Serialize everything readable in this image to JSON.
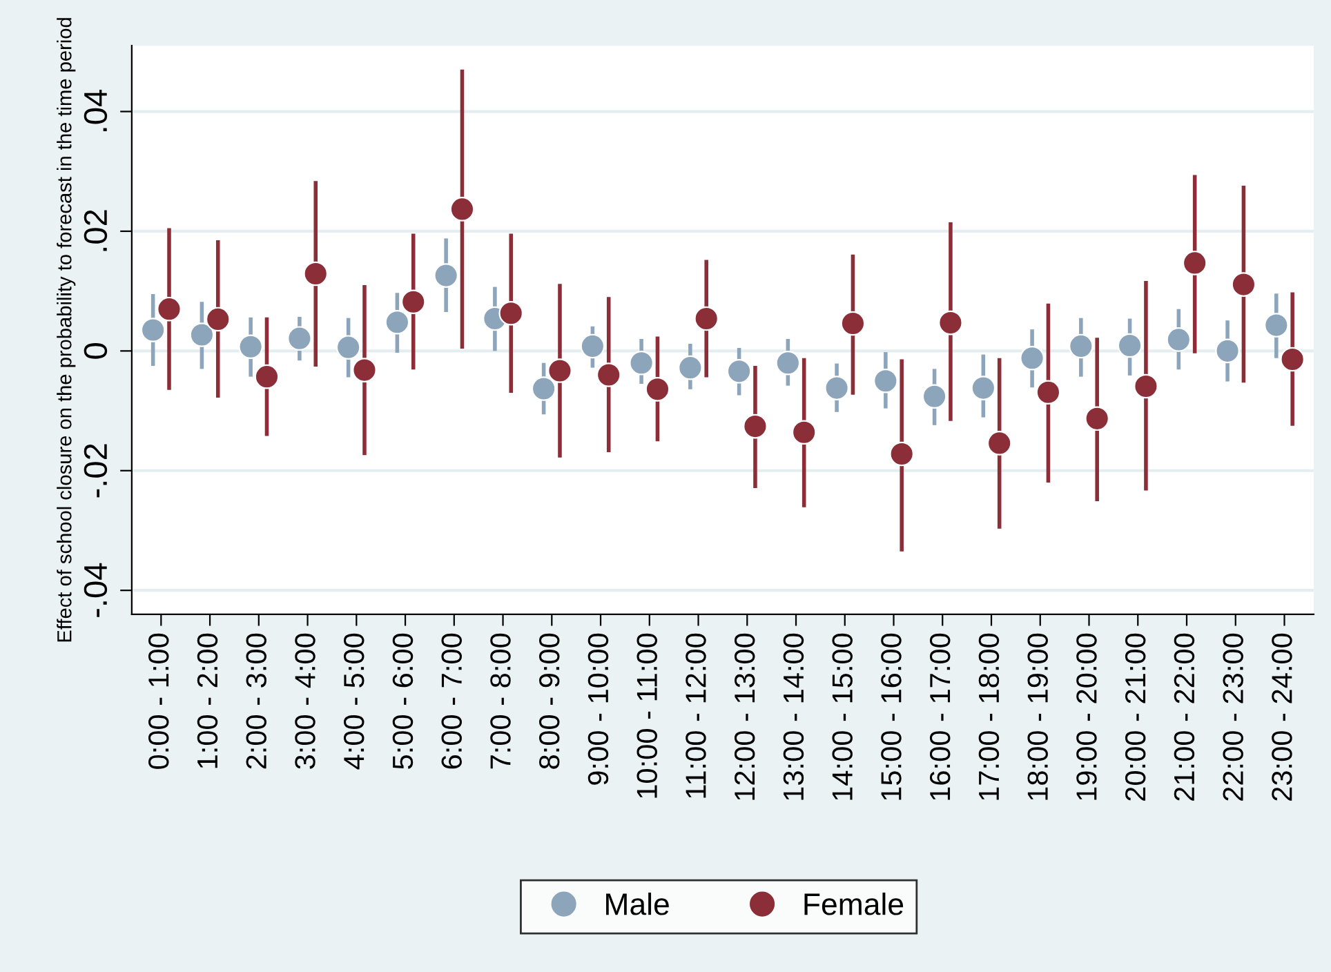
{
  "chart_data": {
    "type": "scatter",
    "ylabel": "Effect of school closure on the probability to forecast in the time period",
    "categories": [
      "0:00 - 1:00",
      "1:00 - 2:00",
      "2:00 - 3:00",
      "3:00 - 4:00",
      "4:00 - 5:00",
      "5:00 - 6:00",
      "6:00 - 7:00",
      "7:00 - 8:00",
      "8:00 - 9:00",
      "9:00 - 10:00",
      "10:00 - 11:00",
      "11:00 - 12:00",
      "12:00 - 13:00",
      "13:00 - 14:00",
      "14:00 - 15:00",
      "15:00 - 16:00",
      "16:00 - 17:00",
      "17:00 - 18:00",
      "18:00 - 19:00",
      "19:00 - 20:00",
      "20:00 - 21:00",
      "21:00 - 22:00",
      "22:00 - 23:00",
      "23:00 - 24:00"
    ],
    "series": [
      {
        "name": "Male",
        "color": "#8da5bb",
        "values": [
          0.0035,
          0.0027,
          0.0007,
          0.0021,
          0.0006,
          0.0048,
          0.0126,
          0.0054,
          -0.0063,
          0.0008,
          -0.002,
          -0.0028,
          -0.0034,
          -0.002,
          -0.0062,
          -0.005,
          -0.0076,
          -0.0062,
          -0.0012,
          0.0008,
          0.0009,
          0.0019,
          0.0,
          0.0043
        ],
        "errors": [
          [
            -0.0025,
            0.0095
          ],
          [
            -0.003,
            0.0082
          ],
          [
            -0.0043,
            0.0056
          ],
          [
            -0.0016,
            0.0057
          ],
          [
            -0.0044,
            0.0055
          ],
          [
            -0.0003,
            0.0097
          ],
          [
            0.0065,
            0.0188
          ],
          [
            0.0,
            0.0107
          ],
          [
            -0.0106,
            -0.002
          ],
          [
            -0.0028,
            0.0041
          ],
          [
            -0.0055,
            0.002
          ],
          [
            -0.0064,
            0.0012
          ],
          [
            -0.0074,
            0.0005
          ],
          [
            -0.0058,
            0.002
          ],
          [
            -0.0102,
            -0.0021
          ],
          [
            -0.0096,
            -0.0002
          ],
          [
            -0.0124,
            -0.003
          ],
          [
            -0.0111,
            -0.0006
          ],
          [
            -0.0061,
            0.0036
          ],
          [
            -0.0043,
            0.0055
          ],
          [
            -0.0041,
            0.0054
          ],
          [
            -0.0031,
            0.007
          ],
          [
            -0.0051,
            0.0051
          ],
          [
            -0.0012,
            0.0096
          ]
        ]
      },
      {
        "name": "Female",
        "color": "#8b2e38",
        "values": [
          0.007,
          0.0053,
          -0.0043,
          0.0129,
          -0.0032,
          0.0082,
          0.0237,
          0.0063,
          -0.0033,
          -0.004,
          -0.0064,
          0.0054,
          -0.0126,
          -0.0136,
          0.0046,
          -0.0172,
          0.0047,
          -0.0154,
          -0.0069,
          -0.0113,
          -0.0059,
          0.0147,
          0.0111,
          -0.0014
        ],
        "errors": [
          [
            -0.0065,
            0.0205
          ],
          [
            -0.0078,
            0.0185
          ],
          [
            -0.0142,
            0.0056
          ],
          [
            -0.0026,
            0.0284
          ],
          [
            -0.0174,
            0.011
          ],
          [
            -0.0031,
            0.0196
          ],
          [
            0.0004,
            0.047
          ],
          [
            -0.007,
            0.0196
          ],
          [
            -0.0178,
            0.0112
          ],
          [
            -0.0169,
            0.009
          ],
          [
            -0.0151,
            0.0024
          ],
          [
            -0.0044,
            0.0152
          ],
          [
            -0.0229,
            -0.0025
          ],
          [
            -0.0261,
            -0.0012
          ],
          [
            -0.0073,
            0.0161
          ],
          [
            -0.0335,
            -0.0014
          ],
          [
            -0.0117,
            0.0215
          ],
          [
            -0.0297,
            -0.0012
          ],
          [
            -0.022,
            0.0079
          ],
          [
            -0.0251,
            0.0022
          ],
          [
            -0.0233,
            0.0117
          ],
          [
            -0.0004,
            0.0294
          ],
          [
            -0.0053,
            0.0276
          ],
          [
            -0.0125,
            0.0098
          ]
        ]
      }
    ],
    "ylim": [
      -0.044,
      0.051
    ],
    "yticks": [
      {
        "value": -0.04,
        "label": "-.04"
      },
      {
        "value": -0.02,
        "label": "-.02"
      },
      0,
      {
        "value": 0.02,
        "label": ".02"
      },
      {
        "value": 0.04,
        "label": ".04"
      }
    ],
    "grid": "y",
    "legend": "bottom",
    "marker": "circle"
  }
}
